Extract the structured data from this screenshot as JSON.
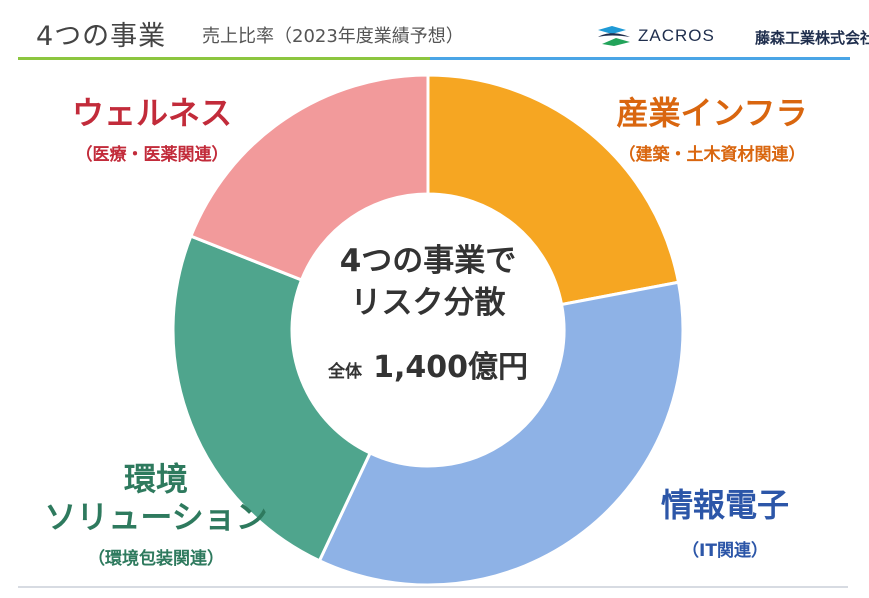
{
  "header": {
    "title": "4つの事業",
    "subtitle": "売上比率（2023年度業績予想）",
    "logo_text": "ZACROS",
    "company": "藤森工業株式会社"
  },
  "center": {
    "line1": "4つの事業で",
    "line2": "リスク分散",
    "total_label": "全体",
    "total_value": "1,400億円"
  },
  "chart_data": {
    "type": "pie",
    "title": "売上比率（2023年度業績予想）",
    "total": "1,400億円",
    "slices": [
      {
        "name": "産業インフラ",
        "sub": "（建築・土木資材関連）",
        "value": 22,
        "color": "#f6a622",
        "label_color": "#d9660f"
      },
      {
        "name": "情報電子",
        "sub": "（IT関連）",
        "value": 35,
        "color": "#8eb2e6",
        "label_color": "#2c56a8"
      },
      {
        "name": "環境ソリューション",
        "sub": "（環境包装関連）",
        "value": 24,
        "color": "#4fa58d",
        "label_color": "#2e7a5e"
      },
      {
        "name": "ウェルネス",
        "sub": "（医療・医薬関連）",
        "value": 19,
        "color": "#f29a9b",
        "label_color": "#c22b3a"
      }
    ]
  }
}
